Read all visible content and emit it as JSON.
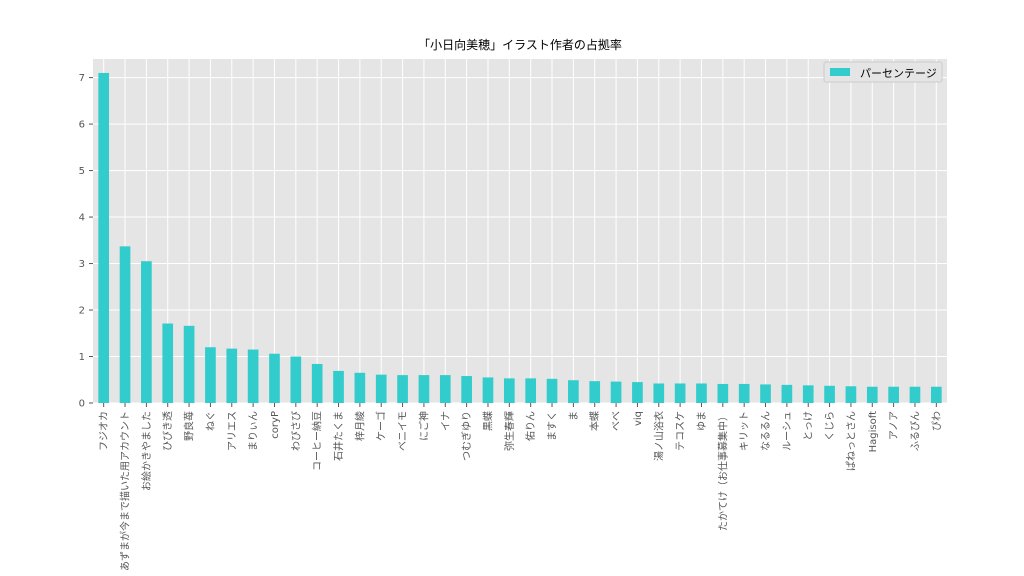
{
  "chart_data": {
    "type": "bar",
    "title": "「小日向美穂」イラスト作者の占拠率",
    "xlabel": "",
    "ylabel": "",
    "ylim": [
      0,
      7.4
    ],
    "yticks": [
      0,
      1,
      2,
      3,
      4,
      5,
      6,
      7
    ],
    "grid": true,
    "legend_position": "top-right",
    "bar_color": "#33cccc",
    "plot_background": "#e5e5e5",
    "categories": [
      "フジオカ",
      "あずまが今まで描いた用アカウント",
      "お絵かきやました",
      "ひびき透",
      "野良苺",
      "ねぐ",
      "アリエス",
      "まりぃん",
      "coryP",
      "わびさび",
      "コーヒー納豆",
      "石井たくま",
      "梓月綾",
      "ケーゴ",
      "ベニイモ",
      "にご神",
      "イナ",
      "つむぎゆり",
      "黒蝶",
      "弥生春輝",
      "佑りん",
      "ますく",
      "ま",
      "本蝶",
      "べべ",
      "viq",
      "湯ノ山浴衣",
      "テコスケ",
      "ゆま",
      "たかてけ（お仕事募集中）",
      "キリット",
      "なるるん",
      "ルーシュ",
      "とっけ",
      "くじら",
      "ぱねっとさん",
      "Hagisoft",
      "アノア",
      "ふるぴん",
      "ぴわ"
    ],
    "series": [
      {
        "name": "パーセンテージ",
        "values": [
          7.1,
          3.37,
          3.05,
          1.71,
          1.66,
          1.2,
          1.17,
          1.15,
          1.06,
          1.0,
          0.84,
          0.69,
          0.65,
          0.61,
          0.6,
          0.6,
          0.6,
          0.58,
          0.55,
          0.53,
          0.53,
          0.52,
          0.49,
          0.47,
          0.46,
          0.45,
          0.42,
          0.42,
          0.42,
          0.41,
          0.41,
          0.4,
          0.39,
          0.38,
          0.37,
          0.36,
          0.35,
          0.35,
          0.35,
          0.35
        ]
      }
    ]
  }
}
